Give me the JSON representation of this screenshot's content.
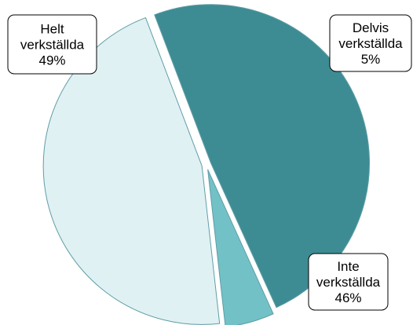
{
  "chart_data": {
    "type": "pie",
    "title": "",
    "legend": "none",
    "colors": {
      "outline": "#5f9ea6",
      "label_border": "#000000",
      "label_background": "#ffffff"
    },
    "slices": [
      {
        "name_lines": [
          "Helt",
          "verkställda"
        ],
        "value": 49,
        "value_label": "49%",
        "color": "#3e8c93"
      },
      {
        "name_lines": [
          "Delvis",
          "verkställda"
        ],
        "value": 5,
        "value_label": "5%",
        "color": "#72c1c7"
      },
      {
        "name_lines": [
          "Inte",
          "verkställda"
        ],
        "value": 46,
        "value_label": "46%",
        "color": "#e0f1f3"
      }
    ]
  }
}
